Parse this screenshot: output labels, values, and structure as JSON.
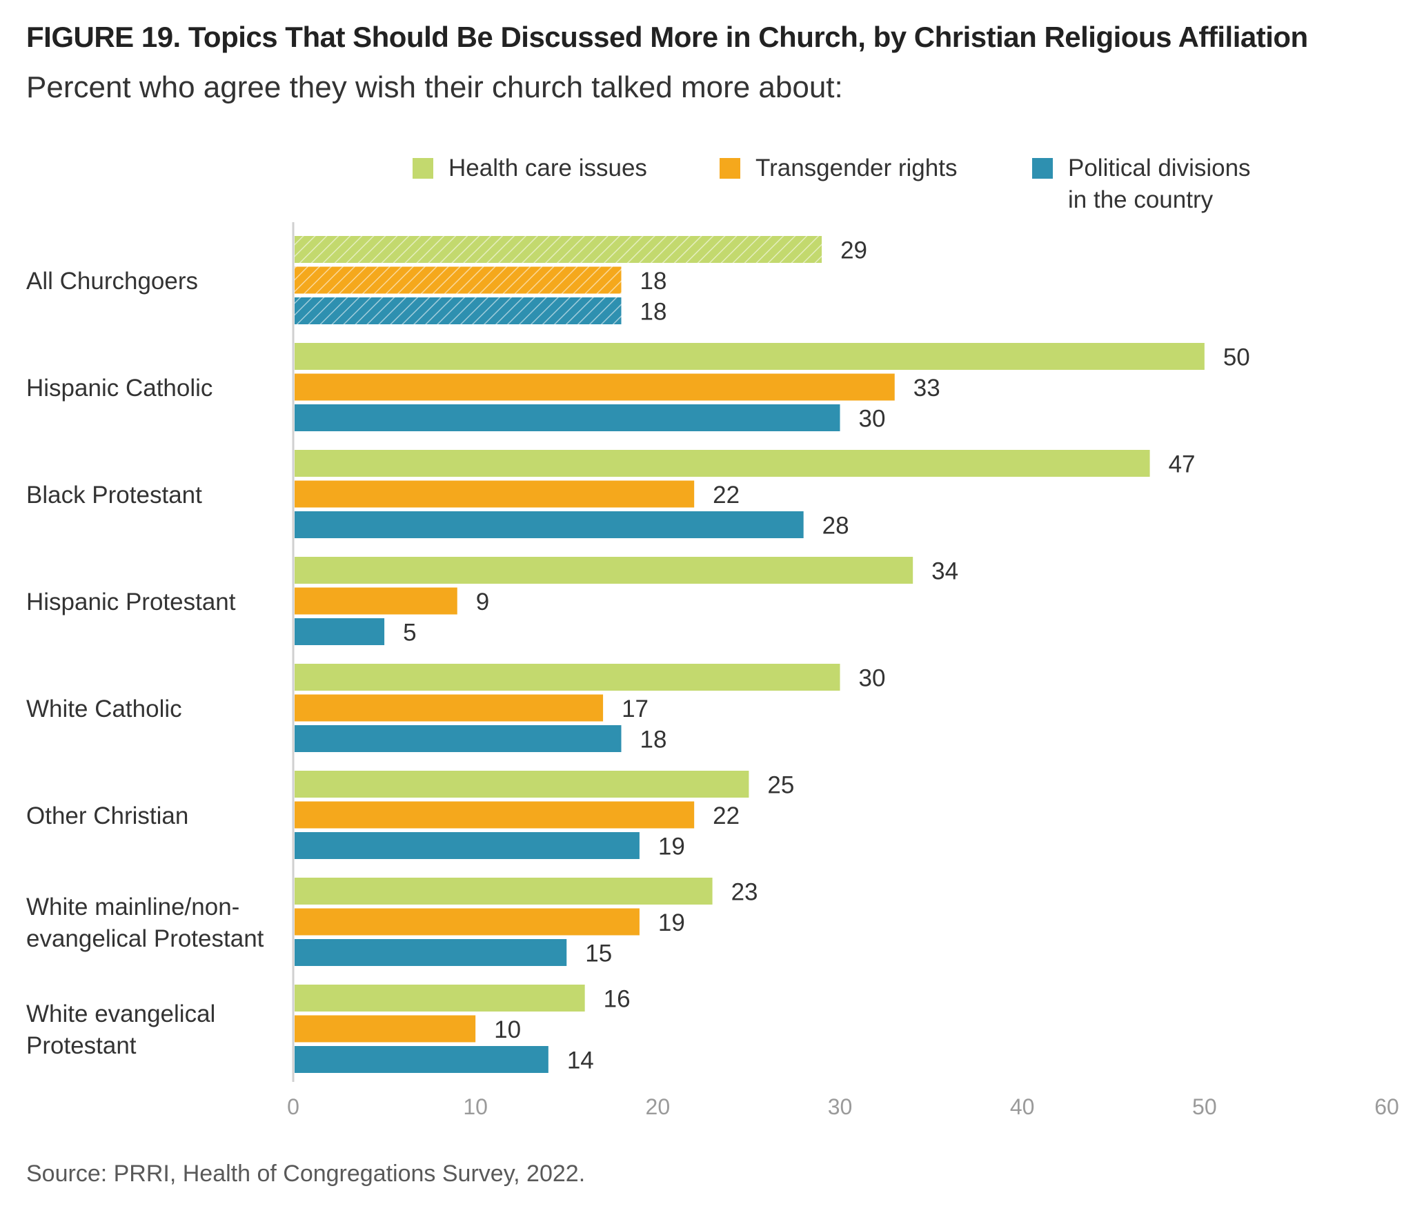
{
  "title": "FIGURE 19.  Topics That Should Be Discussed More in Church, by Christian Religious Affiliation",
  "subtitle": "Percent who agree they wish their church talked more about:",
  "source": "Source: PRRI, Health of Congregations Survey, 2022.",
  "chart_data": {
    "type": "bar",
    "orientation": "horizontal",
    "categories": [
      [
        "All Churchgoers"
      ],
      [
        "Hispanic Catholic"
      ],
      [
        "Black Protestant"
      ],
      [
        "Hispanic Protestant"
      ],
      [
        "White Catholic"
      ],
      [
        "Other Christian"
      ],
      [
        "White mainline/non-",
        "evangelical Protestant"
      ],
      [
        "White evangelical",
        "Protestant"
      ]
    ],
    "series": [
      {
        "name": [
          "Health care issues"
        ],
        "color": "#c3d96e",
        "values": [
          29,
          50,
          47,
          34,
          30,
          25,
          23,
          16
        ]
      },
      {
        "name": [
          "Transgender rights"
        ],
        "color": "#f5a81c",
        "values": [
          18,
          33,
          22,
          9,
          17,
          22,
          19,
          10
        ]
      },
      {
        "name": [
          "Political divisions",
          "in the country"
        ],
        "color": "#2e90b0",
        "values": [
          18,
          30,
          28,
          5,
          18,
          19,
          15,
          14
        ]
      }
    ],
    "highlighted_category": "All Churchgoers",
    "highlight_style": "hatched",
    "xlim": [
      0,
      60
    ],
    "xticks": [
      0,
      10,
      20,
      30,
      40,
      50,
      60
    ],
    "legend": "top",
    "grid": false
  }
}
